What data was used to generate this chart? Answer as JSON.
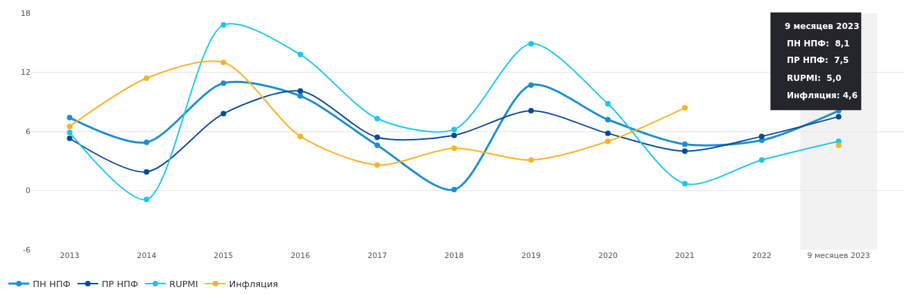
{
  "chart_data": {
    "type": "line",
    "categories": [
      "2013",
      "2014",
      "2015",
      "2016",
      "2017",
      "2018",
      "2019",
      "2020",
      "2021",
      "2022",
      "9 месяцев 2023"
    ],
    "series": [
      {
        "name": "ПН НПФ",
        "color": "#1a8fd1",
        "values": [
          7.4,
          4.9,
          10.9,
          9.6,
          4.6,
          0.1,
          10.7,
          7.2,
          4.7,
          5.1,
          8.1
        ]
      },
      {
        "name": "ПР НПФ",
        "color": "#0a4a97",
        "values": [
          5.3,
          1.9,
          7.8,
          10.1,
          5.4,
          5.6,
          8.1,
          5.8,
          4.0,
          5.5,
          7.5
        ]
      },
      {
        "name": "RUPMI",
        "color": "#19c7ee",
        "values": [
          5.9,
          -0.9,
          16.8,
          13.8,
          7.3,
          6.2,
          14.9,
          8.8,
          0.7,
          3.1,
          5.0
        ]
      },
      {
        "name": "Инфляция",
        "color": "#fbb122",
        "values": [
          6.5,
          11.4,
          13.0,
          5.5,
          2.6,
          4.3,
          3.1,
          5.0,
          8.4,
          null,
          4.6
        ]
      }
    ],
    "ylim": [
      -6,
      18
    ],
    "yticks": [
      -6,
      0,
      6,
      12,
      18
    ],
    "grid": "y",
    "legend": "bottom left",
    "marker": "circle",
    "line_style": "solid",
    "bands": [
      {
        "axis": "x",
        "from": "9 месяцев 2023",
        "to": "9 месяцев 2023",
        "color": "#f2f2f2"
      }
    ],
    "annotations": [
      "9 месяцев 2023",
      "ПН НПФ:  8,1",
      "ПР НПФ:  7,5",
      "RUPMI:  5,0",
      "Инфляция: 4,6"
    ]
  }
}
